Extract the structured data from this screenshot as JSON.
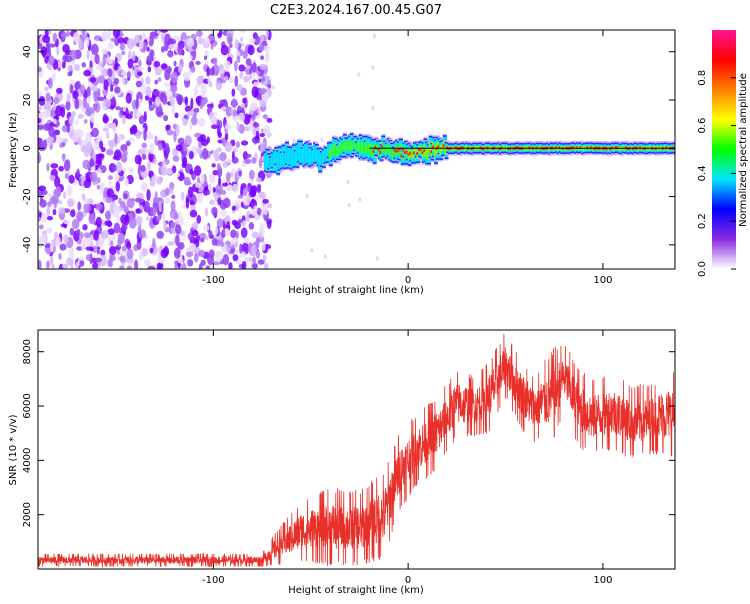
{
  "title": "C2E3.2024.167.00.45.G07",
  "chart_data": [
    {
      "type": "heatmap",
      "xlabel": "Height of straight line (km)",
      "ylabel": "Frequency (Hz)",
      "xlim": [
        -190,
        137
      ],
      "ylim": [
        -50,
        49
      ],
      "xticks": [
        -100,
        0,
        100
      ],
      "yticks": [
        -40,
        -20,
        0,
        20,
        40
      ],
      "noise_region_x": [
        -190,
        -73
      ],
      "tone_track": [
        {
          "x": -73,
          "y": -6
        },
        {
          "x": -65,
          "y": -4
        },
        {
          "x": -58,
          "y": -3
        },
        {
          "x": -50,
          "y": -2
        },
        {
          "x": -45,
          "y": -4
        },
        {
          "x": -40,
          "y": -2
        },
        {
          "x": -35,
          "y": 0
        },
        {
          "x": -30,
          "y": 2
        },
        {
          "x": -25,
          "y": 1
        },
        {
          "x": -20,
          "y": 0
        },
        {
          "x": -10,
          "y": -1
        },
        {
          "x": 0,
          "y": -2
        },
        {
          "x": 10,
          "y": -1
        },
        {
          "x": 20,
          "y": 0
        },
        {
          "x": 137,
          "y": 0
        }
      ],
      "colorbar": {
        "label": "Normalized spectral amplitude",
        "ticks": [
          "0.0",
          "0.2",
          "0.4",
          "0.6",
          "0.8"
        ],
        "range": [
          0,
          1
        ],
        "colors": [
          "#ffffff",
          "#8a2be2",
          "#0000ff",
          "#00e5ff",
          "#00ff00",
          "#ffff00",
          "#ff8000",
          "#ff0000",
          "#ff1493"
        ]
      }
    },
    {
      "type": "line",
      "xlabel": "Height of straight line (km)",
      "ylabel": "SNR (10 * v/v)",
      "xlim": [
        -190,
        137
      ],
      "ylim": [
        0,
        8800
      ],
      "xticks": [
        -100,
        0,
        100
      ],
      "yticks": [
        2000,
        4000,
        6000,
        8000
      ],
      "color": "#e8302a",
      "envelope": {
        "x": [
          -190,
          -75,
          -68,
          -55,
          -40,
          -25,
          -12,
          -5,
          5,
          15,
          25,
          35,
          42,
          50,
          58,
          65,
          75,
          80,
          88,
          95,
          105,
          115,
          125,
          137
        ],
        "low": [
          150,
          150,
          300,
          600,
          500,
          500,
          800,
          2500,
          3500,
          4000,
          5200,
          5200,
          5400,
          6600,
          5500,
          5000,
          5200,
          6200,
          4800,
          4600,
          4800,
          4400,
          4600,
          4600
        ],
        "high": [
          500,
          500,
          1200,
          2200,
          2600,
          2500,
          3200,
          4600,
          5400,
          6000,
          7000,
          6800,
          7400,
          8400,
          7400,
          6800,
          7700,
          8000,
          7000,
          6600,
          6800,
          6400,
          6500,
          6900
        ]
      }
    }
  ]
}
